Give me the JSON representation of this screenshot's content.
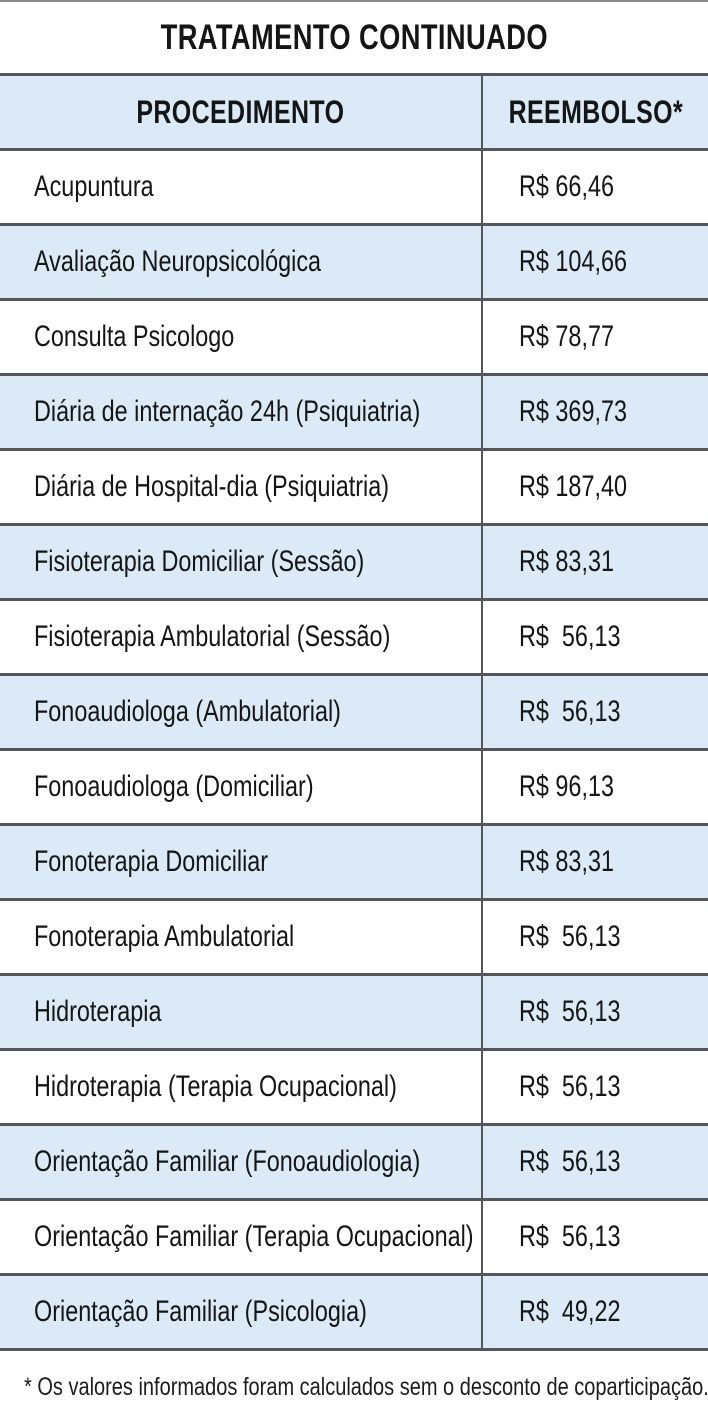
{
  "page": {
    "title": "TRATAMENTO CONTINUADO",
    "footnote": "* Os valores informados foram calculados sem o desconto de coparticipação."
  },
  "colors": {
    "row_alt_blue": "#dbeaf6",
    "rule_gray": "#55565a",
    "text": "#151515"
  },
  "table": {
    "headers": {
      "procedure": "PROCEDIMENTO",
      "reimbursement": "REEMBOLSO*"
    },
    "rows": [
      {
        "procedure": "Acupuntura",
        "value": "R$ 66,46"
      },
      {
        "procedure": "Avaliação Neuropsicológica",
        "value": "R$ 104,66"
      },
      {
        "procedure": "Consulta Psicologo",
        "value": "R$ 78,77"
      },
      {
        "procedure": "Diária de internação 24h (Psiquiatria)",
        "value": "R$ 369,73"
      },
      {
        "procedure": "Diária de Hospital-dia (Psiquiatria)",
        "value": "R$ 187,40"
      },
      {
        "procedure": "Fisioterapia Domiciliar (Sessão)",
        "value": "R$ 83,31"
      },
      {
        "procedure": "Fisioterapia Ambulatorial (Sessão)",
        "value": "R$  56,13"
      },
      {
        "procedure": "Fonoaudiologa (Ambulatorial)",
        "value": "R$  56,13"
      },
      {
        "procedure": "Fonoaudiologa (Domiciliar)",
        "value": "R$ 96,13"
      },
      {
        "procedure": "Fonoterapia Domiciliar",
        "value": "R$ 83,31"
      },
      {
        "procedure": "Fonoterapia Ambulatorial",
        "value": "R$  56,13"
      },
      {
        "procedure": "Hidroterapia",
        "value": "R$  56,13"
      },
      {
        "procedure": "Hidroterapia (Terapia Ocupacional)",
        "value": "R$  56,13"
      },
      {
        "procedure": "Orientação Familiar (Fonoaudiologia)",
        "value": "R$  56,13"
      },
      {
        "procedure": "Orientação Familiar (Terapia Ocupacional)",
        "value": "R$  56,13"
      },
      {
        "procedure": "Orientação Familiar (Psicologia)",
        "value": "R$  49,22"
      }
    ]
  },
  "chart_data": {
    "type": "table",
    "title": "TRATAMENTO CONTINUADO",
    "columns": [
      "PROCEDIMENTO",
      "REEMBOLSO*"
    ],
    "rows": [
      [
        "Acupuntura",
        "R$ 66,46"
      ],
      [
        "Avaliação Neuropsicológica",
        "R$ 104,66"
      ],
      [
        "Consulta Psicologo",
        "R$ 78,77"
      ],
      [
        "Diária de internação 24h (Psiquiatria)",
        "R$ 369,73"
      ],
      [
        "Diária de Hospital-dia (Psiquiatria)",
        "R$ 187,40"
      ],
      [
        "Fisioterapia Domiciliar (Sessão)",
        "R$ 83,31"
      ],
      [
        "Fisioterapia Ambulatorial (Sessão)",
        "R$ 56,13"
      ],
      [
        "Fonoaudiologa (Ambulatorial)",
        "R$ 56,13"
      ],
      [
        "Fonoaudiologa (Domiciliar)",
        "R$ 96,13"
      ],
      [
        "Fonoterapia Domiciliar",
        "R$ 83,31"
      ],
      [
        "Fonoterapia Ambulatorial",
        "R$ 56,13"
      ],
      [
        "Hidroterapia",
        "R$ 56,13"
      ],
      [
        "Hidroterapia (Terapia Ocupacional)",
        "R$ 56,13"
      ],
      [
        "Orientação Familiar (Fonoaudiologia)",
        "R$ 56,13"
      ],
      [
        "Orientação Familiar (Terapia Ocupacional)",
        "R$ 56,13"
      ],
      [
        "Orientação Familiar (Psicologia)",
        "R$ 49,22"
      ]
    ],
    "values_brl": [
      66.46,
      104.66,
      78.77,
      369.73,
      187.4,
      83.31,
      56.13,
      56.13,
      96.13,
      83.31,
      56.13,
      56.13,
      56.13,
      56.13,
      56.13,
      49.22
    ],
    "footnote": "* Os valores informados foram calculados sem o desconto de coparticipação."
  }
}
